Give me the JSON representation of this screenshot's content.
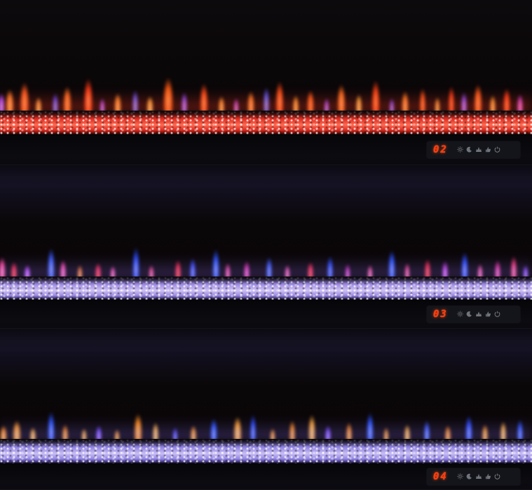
{
  "photo": {
    "description": "Three stacked linear electric fireplace inserts demonstrating flame color modes",
    "control_panel_icons": [
      "sun-icon",
      "moon-icon",
      "flame-icon",
      "hand-icon",
      "power-icon"
    ],
    "display_style": {
      "digit_color": "#ff3b0e",
      "icon_color": "#878c95",
      "panel_bg": "#14151a"
    }
  },
  "units": [
    {
      "name": "fireplace-mode-02-red",
      "display": {
        "value": "02"
      },
      "colors": {
        "bedDark": "#3a0605",
        "bedMain": "#d92c20",
        "bedBright": "#ff6a52",
        "bedEdge": "#7a100c",
        "glow": "rgba(255,60,30,0.38)"
      },
      "flames": [
        [
          0.3,
          14,
          40,
          "#b04aff",
          "#dcb6ff"
        ],
        [
          1.8,
          16,
          48,
          "#ff7b2a",
          "#ffd98c"
        ],
        [
          4.6,
          18,
          62,
          "#ff5a1e",
          "#ffb066"
        ],
        [
          7.2,
          12,
          32,
          "#ffa040",
          "#ffd98c"
        ],
        [
          10.4,
          12,
          40,
          "#5a4aff",
          "#a8c0ff"
        ],
        [
          12.6,
          16,
          54,
          "#ff6a20",
          "#ffb066"
        ],
        [
          16.6,
          18,
          70,
          "#ff3a16",
          "#ffb066"
        ],
        [
          19.2,
          10,
          30,
          "#b04aff",
          "#dcb6ff"
        ],
        [
          22.2,
          14,
          40,
          "#ff8a2a",
          "#ffd98c"
        ],
        [
          25.4,
          12,
          46,
          "#6a5aff",
          "#a8c0ff"
        ],
        [
          28.2,
          13,
          34,
          "#ffb040",
          "#ffe0a0"
        ],
        [
          31.6,
          20,
          72,
          "#ff5a14",
          "#ffb066"
        ],
        [
          34.6,
          12,
          42,
          "#8a4aff",
          "#dcb6ff"
        ],
        [
          38.4,
          16,
          60,
          "#ff4a18",
          "#ffb066"
        ],
        [
          41.6,
          12,
          34,
          "#ff9a35",
          "#ffd98c"
        ],
        [
          44.4,
          10,
          30,
          "#c04ae0",
          "#f0bbff"
        ],
        [
          47.2,
          14,
          44,
          "#ff7a26",
          "#ffcf8a"
        ],
        [
          50.0,
          12,
          52,
          "#5a5aff",
          "#a8c0ff"
        ],
        [
          52.6,
          16,
          64,
          "#ff4a16",
          "#ffb066"
        ],
        [
          55.6,
          12,
          36,
          "#ff9a30",
          "#ffd98c"
        ],
        [
          58.4,
          14,
          46,
          "#ff5a1a",
          "#ffb066"
        ],
        [
          61.4,
          10,
          30,
          "#9a4aff",
          "#dcb6ff"
        ],
        [
          64.2,
          16,
          58,
          "#ff6a1e",
          "#ffc078"
        ],
        [
          67.4,
          12,
          38,
          "#ffae3c",
          "#ffe0a0"
        ],
        [
          70.6,
          16,
          66,
          "#ff4214",
          "#ffa058"
        ],
        [
          73.6,
          10,
          30,
          "#7a4aff",
          "#dcb6ff"
        ],
        [
          76.2,
          14,
          44,
          "#ff7a24",
          "#ffcf8a"
        ],
        [
          79.4,
          12,
          50,
          "#ff5018",
          "#ffb066"
        ],
        [
          82.2,
          10,
          32,
          "#ffa038",
          "#ffd98c"
        ],
        [
          84.8,
          12,
          54,
          "#ff3a16",
          "#ffa058"
        ],
        [
          87.2,
          12,
          42,
          "#8a4aff",
          "#dcb6ff"
        ],
        [
          89.8,
          16,
          58,
          "#ff5a1a",
          "#ffb066"
        ],
        [
          92.6,
          12,
          36,
          "#ff9a30",
          "#ffd98c"
        ],
        [
          95.2,
          14,
          50,
          "#ff3a16",
          "#ffa058"
        ],
        [
          97.8,
          12,
          38,
          "#d040d0",
          "#ffadde"
        ]
      ]
    },
    {
      "name": "fireplace-mode-03-purple",
      "display": {
        "value": "03"
      },
      "colors": {
        "bedDark": "#241a4a",
        "bedMain": "#9c8ae0",
        "bedBright": "#cfc2f4",
        "bedEdge": "#4a3c85",
        "glow": "rgba(150,120,255,0.30)"
      },
      "flames": [
        [
          0.4,
          14,
          44,
          "#ff4aa0",
          "#ffadde"
        ],
        [
          2.6,
          12,
          34,
          "#ff2a50",
          "#ff7a60"
        ],
        [
          5.2,
          12,
          28,
          "#c04aff",
          "#f0bbff"
        ],
        [
          9.6,
          14,
          62,
          "#3a5aff",
          "#a8c0ff"
        ],
        [
          11.8,
          12,
          38,
          "#ff4ab0",
          "#ffadde"
        ],
        [
          15.0,
          10,
          28,
          "#ff7a2a",
          "#ffd98c"
        ],
        [
          18.4,
          12,
          32,
          "#ff2a5a",
          "#ff7a60"
        ],
        [
          21.2,
          10,
          26,
          "#ff5ab0",
          "#ffadde"
        ],
        [
          25.6,
          14,
          64,
          "#2a4aff",
          "#a8c0ff"
        ],
        [
          28.4,
          10,
          28,
          "#ff4a90",
          "#ffadde"
        ],
        [
          33.4,
          12,
          38,
          "#ff2a4a",
          "#ff7a60"
        ],
        [
          36.2,
          12,
          42,
          "#3a4aff",
          "#a8c0ff"
        ],
        [
          40.6,
          14,
          60,
          "#2a52ff",
          "#a8c0ff"
        ],
        [
          42.8,
          10,
          32,
          "#ff4aa8",
          "#ffadde"
        ],
        [
          46.4,
          12,
          36,
          "#e030b0",
          "#ffadde"
        ],
        [
          50.6,
          12,
          44,
          "#3a5aff",
          "#a8c0ff"
        ],
        [
          54.0,
          10,
          28,
          "#ff5ab8",
          "#ffadde"
        ],
        [
          58.4,
          12,
          34,
          "#ff2a50",
          "#ff7a60"
        ],
        [
          62.0,
          12,
          46,
          "#2a4aff",
          "#a8c0ff"
        ],
        [
          65.4,
          10,
          30,
          "#d030c0",
          "#ffadde"
        ],
        [
          69.6,
          10,
          28,
          "#ff5aa0",
          "#ffadde"
        ],
        [
          73.6,
          14,
          58,
          "#2a52ff",
          "#a8c0ff"
        ],
        [
          76.6,
          10,
          32,
          "#ff4a90",
          "#ffadde"
        ],
        [
          80.4,
          12,
          40,
          "#ff2a4a",
          "#ff7a60"
        ],
        [
          83.6,
          12,
          36,
          "#c03ae0",
          "#f0bbff"
        ],
        [
          87.4,
          14,
          54,
          "#2a4aff",
          "#a8c0ff"
        ],
        [
          90.2,
          10,
          30,
          "#ff5ab0",
          "#ffadde"
        ],
        [
          93.6,
          12,
          38,
          "#e0309a",
          "#ffadde"
        ],
        [
          96.6,
          12,
          46,
          "#ff3a7a",
          "#ffadde"
        ],
        [
          98.8,
          10,
          28,
          "#8a4aff",
          "#dcb6ff"
        ]
      ]
    },
    {
      "name": "fireplace-mode-04-mixed",
      "display": {
        "value": "04"
      },
      "colors": {
        "bedDark": "#1e1748",
        "bedMain": "#9184e2",
        "bedBright": "#c9bef4",
        "bedEdge": "#45398a",
        "glow": "rgba(140,120,255,0.30)"
      },
      "flames": [
        [
          0.6,
          14,
          32,
          "#ff8a20",
          "#ffd98c"
        ],
        [
          3.2,
          16,
          42,
          "#ff9a2a",
          "#ffd98c"
        ],
        [
          6.2,
          12,
          28,
          "#ffb040",
          "#ffe0a0"
        ],
        [
          9.6,
          14,
          60,
          "#2a52ff",
          "#a8c0ff"
        ],
        [
          12.2,
          12,
          34,
          "#ff8a20",
          "#ffd98c"
        ],
        [
          15.8,
          10,
          26,
          "#ffae3c",
          "#ffe0a0"
        ],
        [
          18.6,
          12,
          32,
          "#7a4aff",
          "#dcb6ff"
        ],
        [
          22.0,
          10,
          24,
          "#ff9a2a",
          "#ffd98c"
        ],
        [
          26.0,
          16,
          56,
          "#ff8a1a",
          "#ffcf8a"
        ],
        [
          29.2,
          12,
          38,
          "#ffb74a",
          "#ffe0a0"
        ],
        [
          33.0,
          10,
          28,
          "#5a4aff",
          "#a8c0ff"
        ],
        [
          36.4,
          12,
          32,
          "#ff9a2a",
          "#ffd98c"
        ],
        [
          40.2,
          14,
          46,
          "#2a52ff",
          "#a8c0ff"
        ],
        [
          44.6,
          16,
          50,
          "#ffa030",
          "#ffe0a0"
        ],
        [
          47.6,
          12,
          54,
          "#2a4aff",
          "#a8c0ff"
        ],
        [
          51.2,
          10,
          26,
          "#ff9a2a",
          "#ffd98c"
        ],
        [
          55.0,
          12,
          42,
          "#ff8a1a",
          "#ffcf8a"
        ],
        [
          58.6,
          14,
          54,
          "#ffa637",
          "#ffe0a0"
        ],
        [
          61.6,
          12,
          32,
          "#7a4aff",
          "#dcb6ff"
        ],
        [
          65.6,
          12,
          38,
          "#ff8a20",
          "#ffd98c"
        ],
        [
          69.6,
          14,
          58,
          "#2a52ff",
          "#a8c0ff"
        ],
        [
          72.6,
          10,
          28,
          "#ff9a2a",
          "#ffd98c"
        ],
        [
          76.6,
          12,
          34,
          "#ffae3c",
          "#ffe0a0"
        ],
        [
          80.2,
          12,
          42,
          "#3a5aff",
          "#a8c0ff"
        ],
        [
          84.2,
          12,
          32,
          "#ff8a20",
          "#ffd98c"
        ],
        [
          88.2,
          14,
          52,
          "#2a4aff",
          "#a8c0ff"
        ],
        [
          91.2,
          12,
          34,
          "#ff9a2a",
          "#ffd98c"
        ],
        [
          94.6,
          12,
          40,
          "#ffb040",
          "#ffe0a0"
        ],
        [
          97.8,
          12,
          44,
          "#2a52ff",
          "#a8c0ff"
        ]
      ]
    }
  ]
}
